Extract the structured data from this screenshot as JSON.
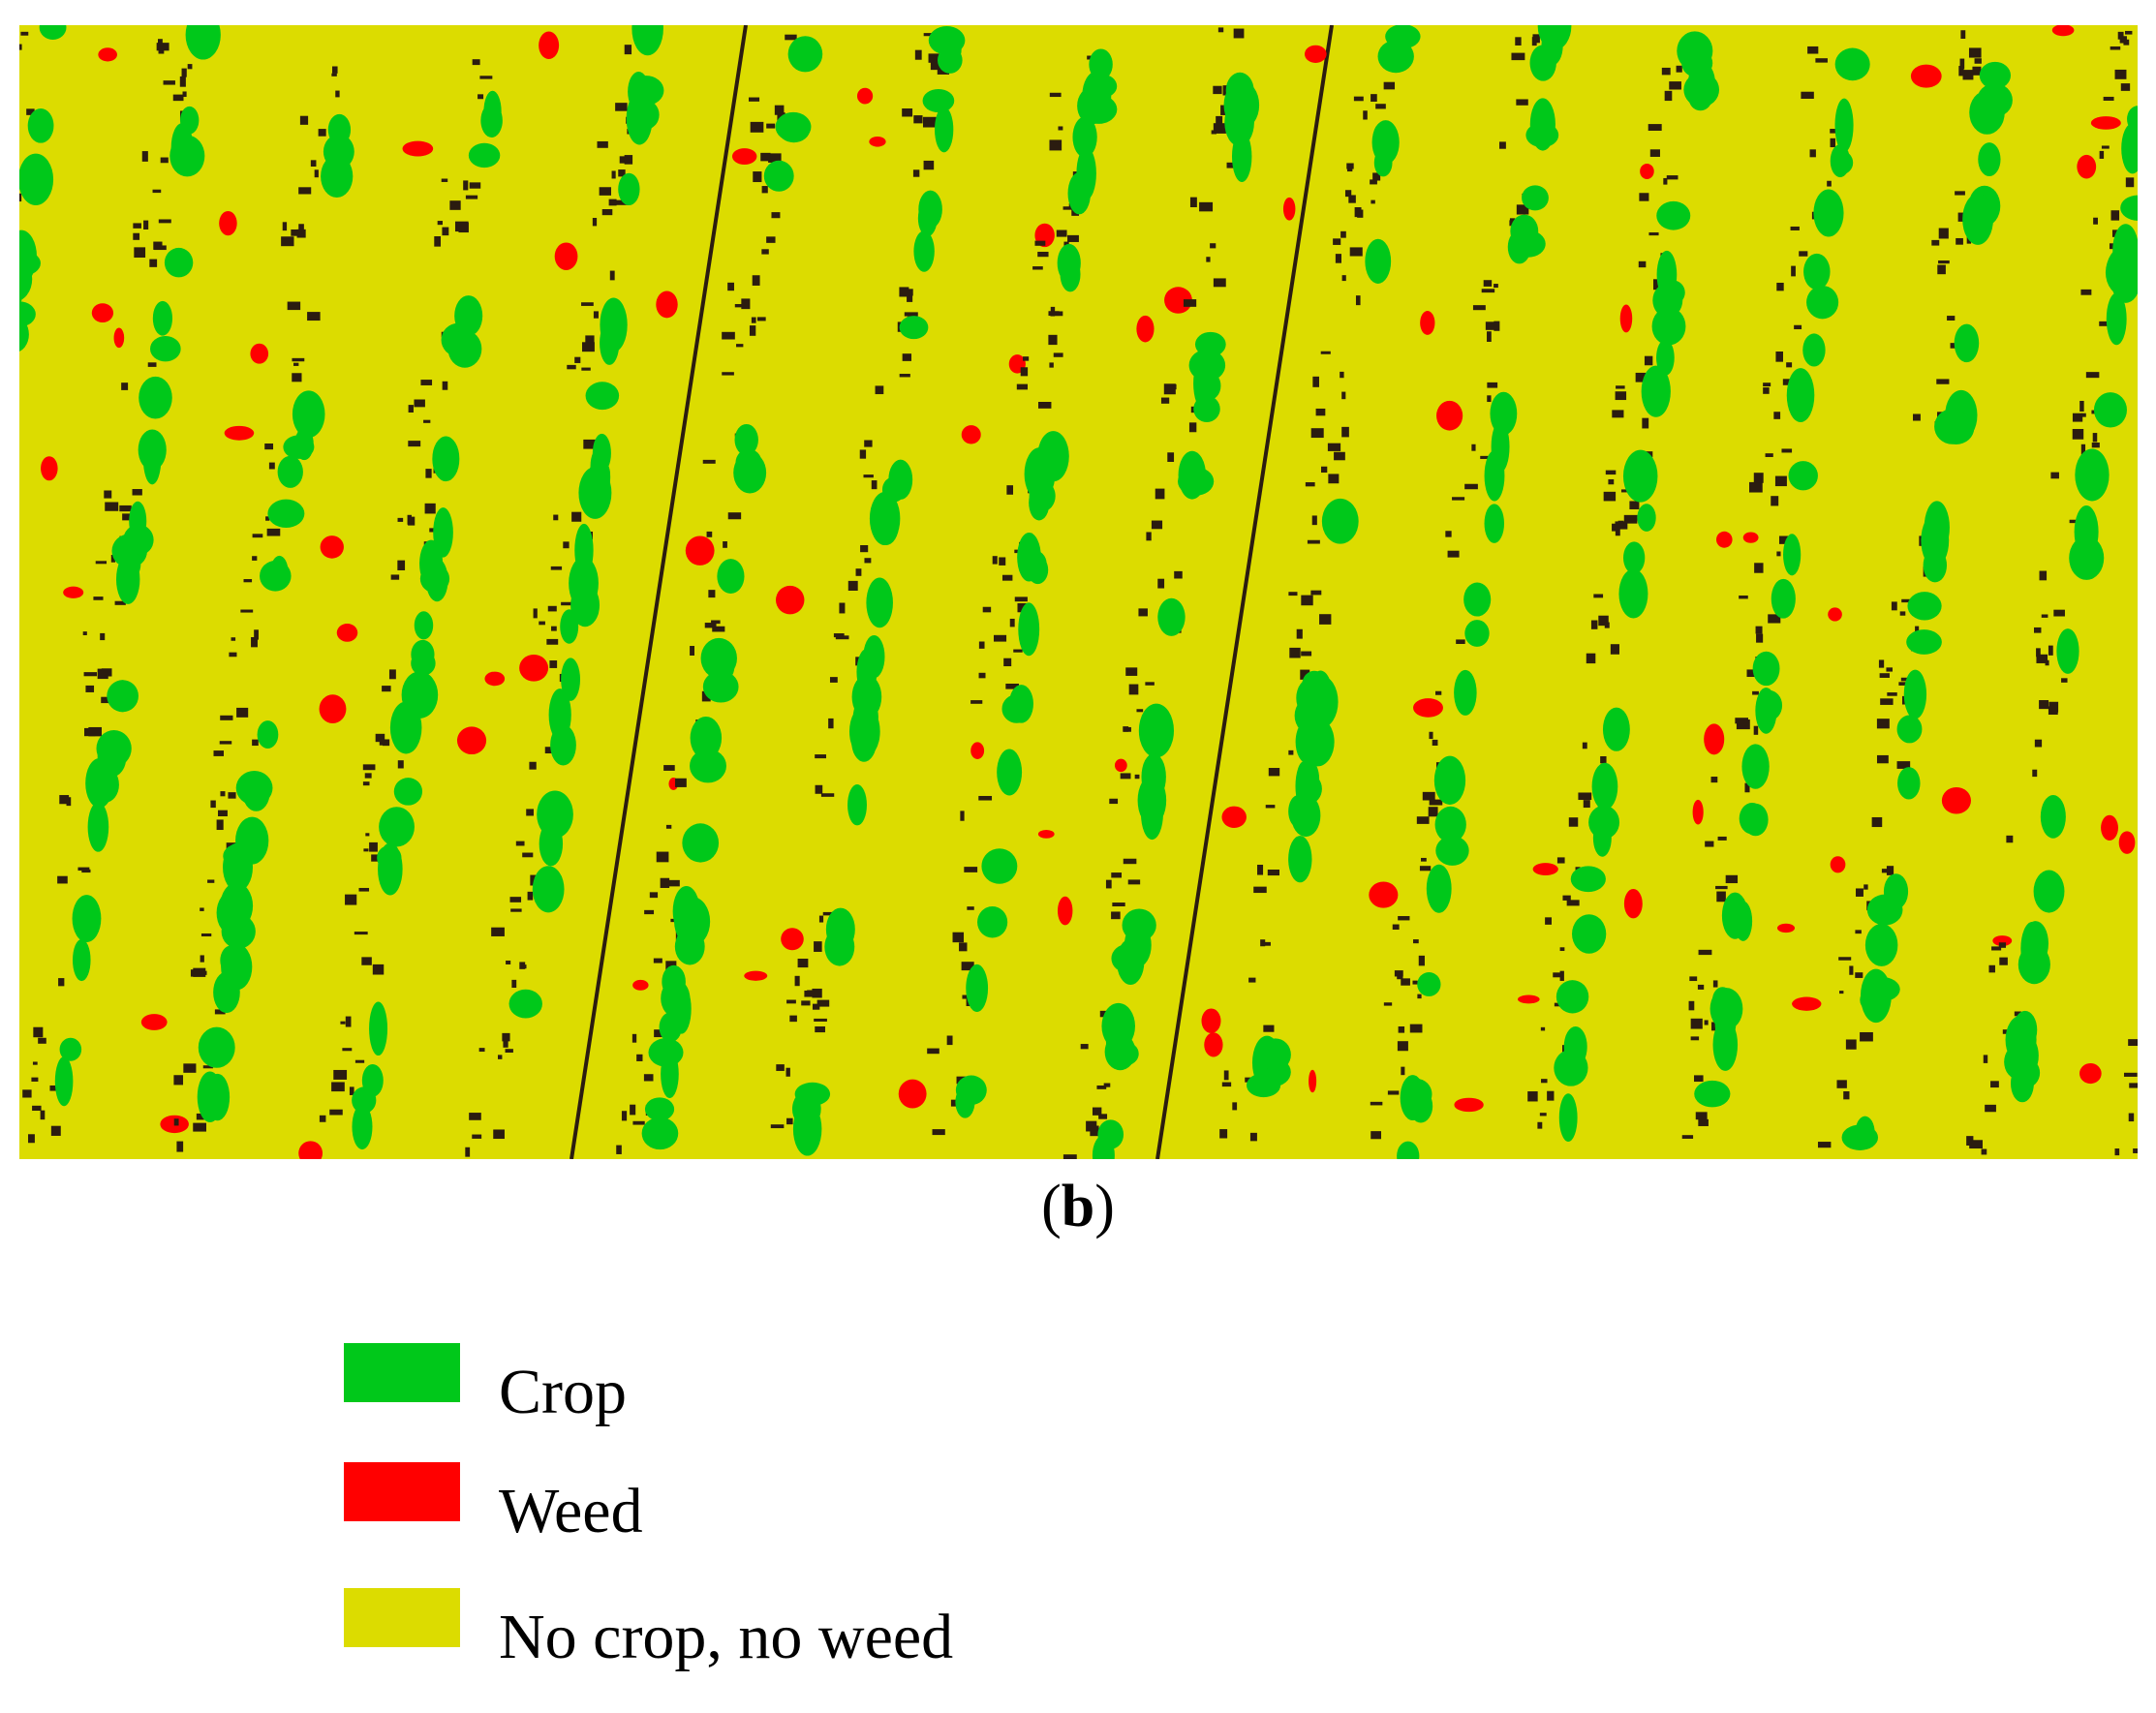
{
  "figure": {
    "caption": {
      "open": "(",
      "letter": "b",
      "close": ")"
    },
    "legend": [
      {
        "label": "Crop",
        "color": "#00c81a"
      },
      {
        "label": "Weed",
        "color": "#ff0000"
      },
      {
        "label": "No crop, no weed",
        "color": "#dcdc00"
      }
    ]
  }
}
